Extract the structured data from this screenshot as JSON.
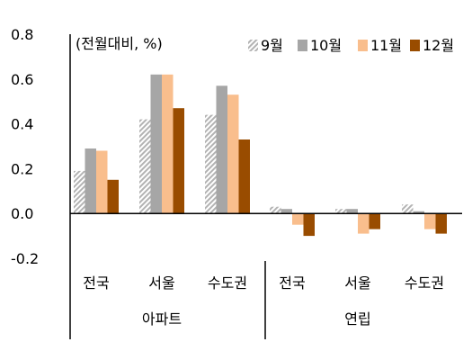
{
  "chart_data": {
    "type": "bar",
    "unit_label": "(전월대비, %)",
    "ylim": [
      -0.2,
      0.8
    ],
    "yticks": [
      "0.8",
      "0.6",
      "0.4",
      "0.2",
      "0.0",
      "-0.2"
    ],
    "ytick_values": [
      0.8,
      0.6,
      0.4,
      0.2,
      0.0,
      -0.2
    ],
    "groups": [
      {
        "label": "아파트",
        "categories": [
          "전국",
          "서울",
          "수도권"
        ]
      },
      {
        "label": "연립",
        "categories": [
          "전국",
          "서울",
          "수도권"
        ]
      }
    ],
    "series": [
      {
        "name": "9월",
        "color": "#d4d4d4",
        "pattern": "hatch",
        "values": [
          0.19,
          0.42,
          0.44,
          0.03,
          0.02,
          0.04
        ]
      },
      {
        "name": "10월",
        "color": "#a6a6a6",
        "values": [
          0.29,
          0.62,
          0.57,
          0.02,
          0.02,
          0.01
        ]
      },
      {
        "name": "11월",
        "color": "#f9be8d",
        "values": [
          0.28,
          0.62,
          0.53,
          -0.05,
          -0.09,
          -0.07
        ]
      },
      {
        "name": "12월",
        "color": "#994c00",
        "values": [
          0.15,
          0.47,
          0.33,
          -0.1,
          -0.07,
          -0.09
        ]
      }
    ],
    "legend_position": "top-right",
    "grid": false
  }
}
